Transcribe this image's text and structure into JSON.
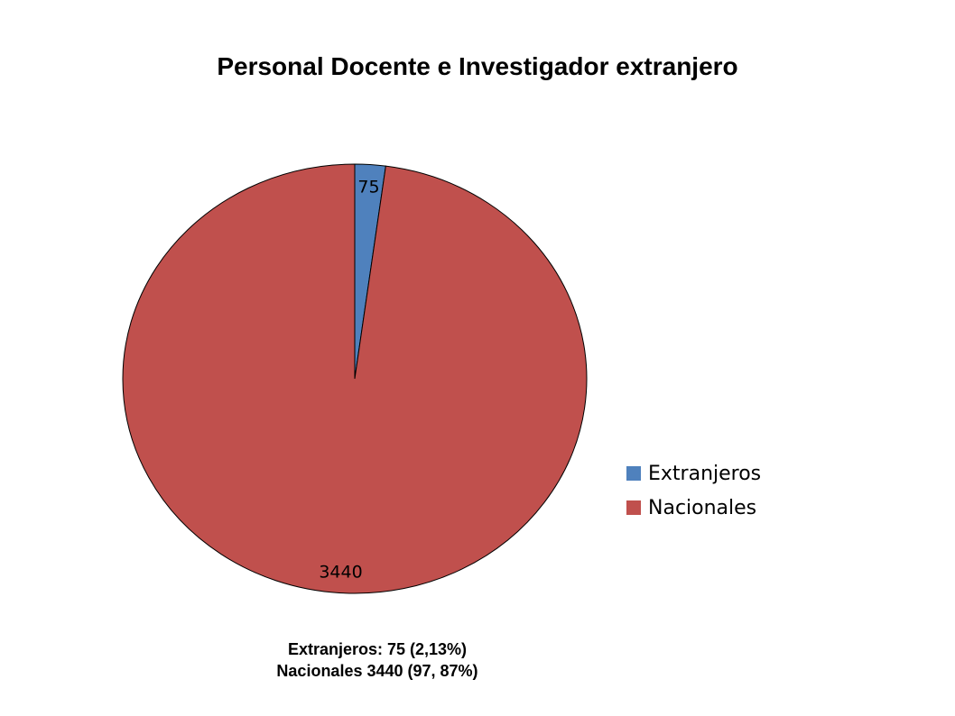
{
  "chart_data": {
    "type": "pie",
    "title": "Personal Docente e Investigador extranjero",
    "categories": [
      "Extranjeros",
      "Nacionales"
    ],
    "values": [
      75,
      3440
    ],
    "data_labels": [
      "75",
      "3440"
    ],
    "colors": [
      "#4F81BD",
      "#C0504D"
    ],
    "start_angle": "top",
    "direction": "clockwise",
    "legend": {
      "placement": "right",
      "entries": [
        "Extranjeros",
        "Nacionales"
      ]
    }
  },
  "footnote": {
    "line1": "Extranjeros: 75  (2,13%)",
    "line2": "Nacionales 3440 (97, 87%)"
  }
}
